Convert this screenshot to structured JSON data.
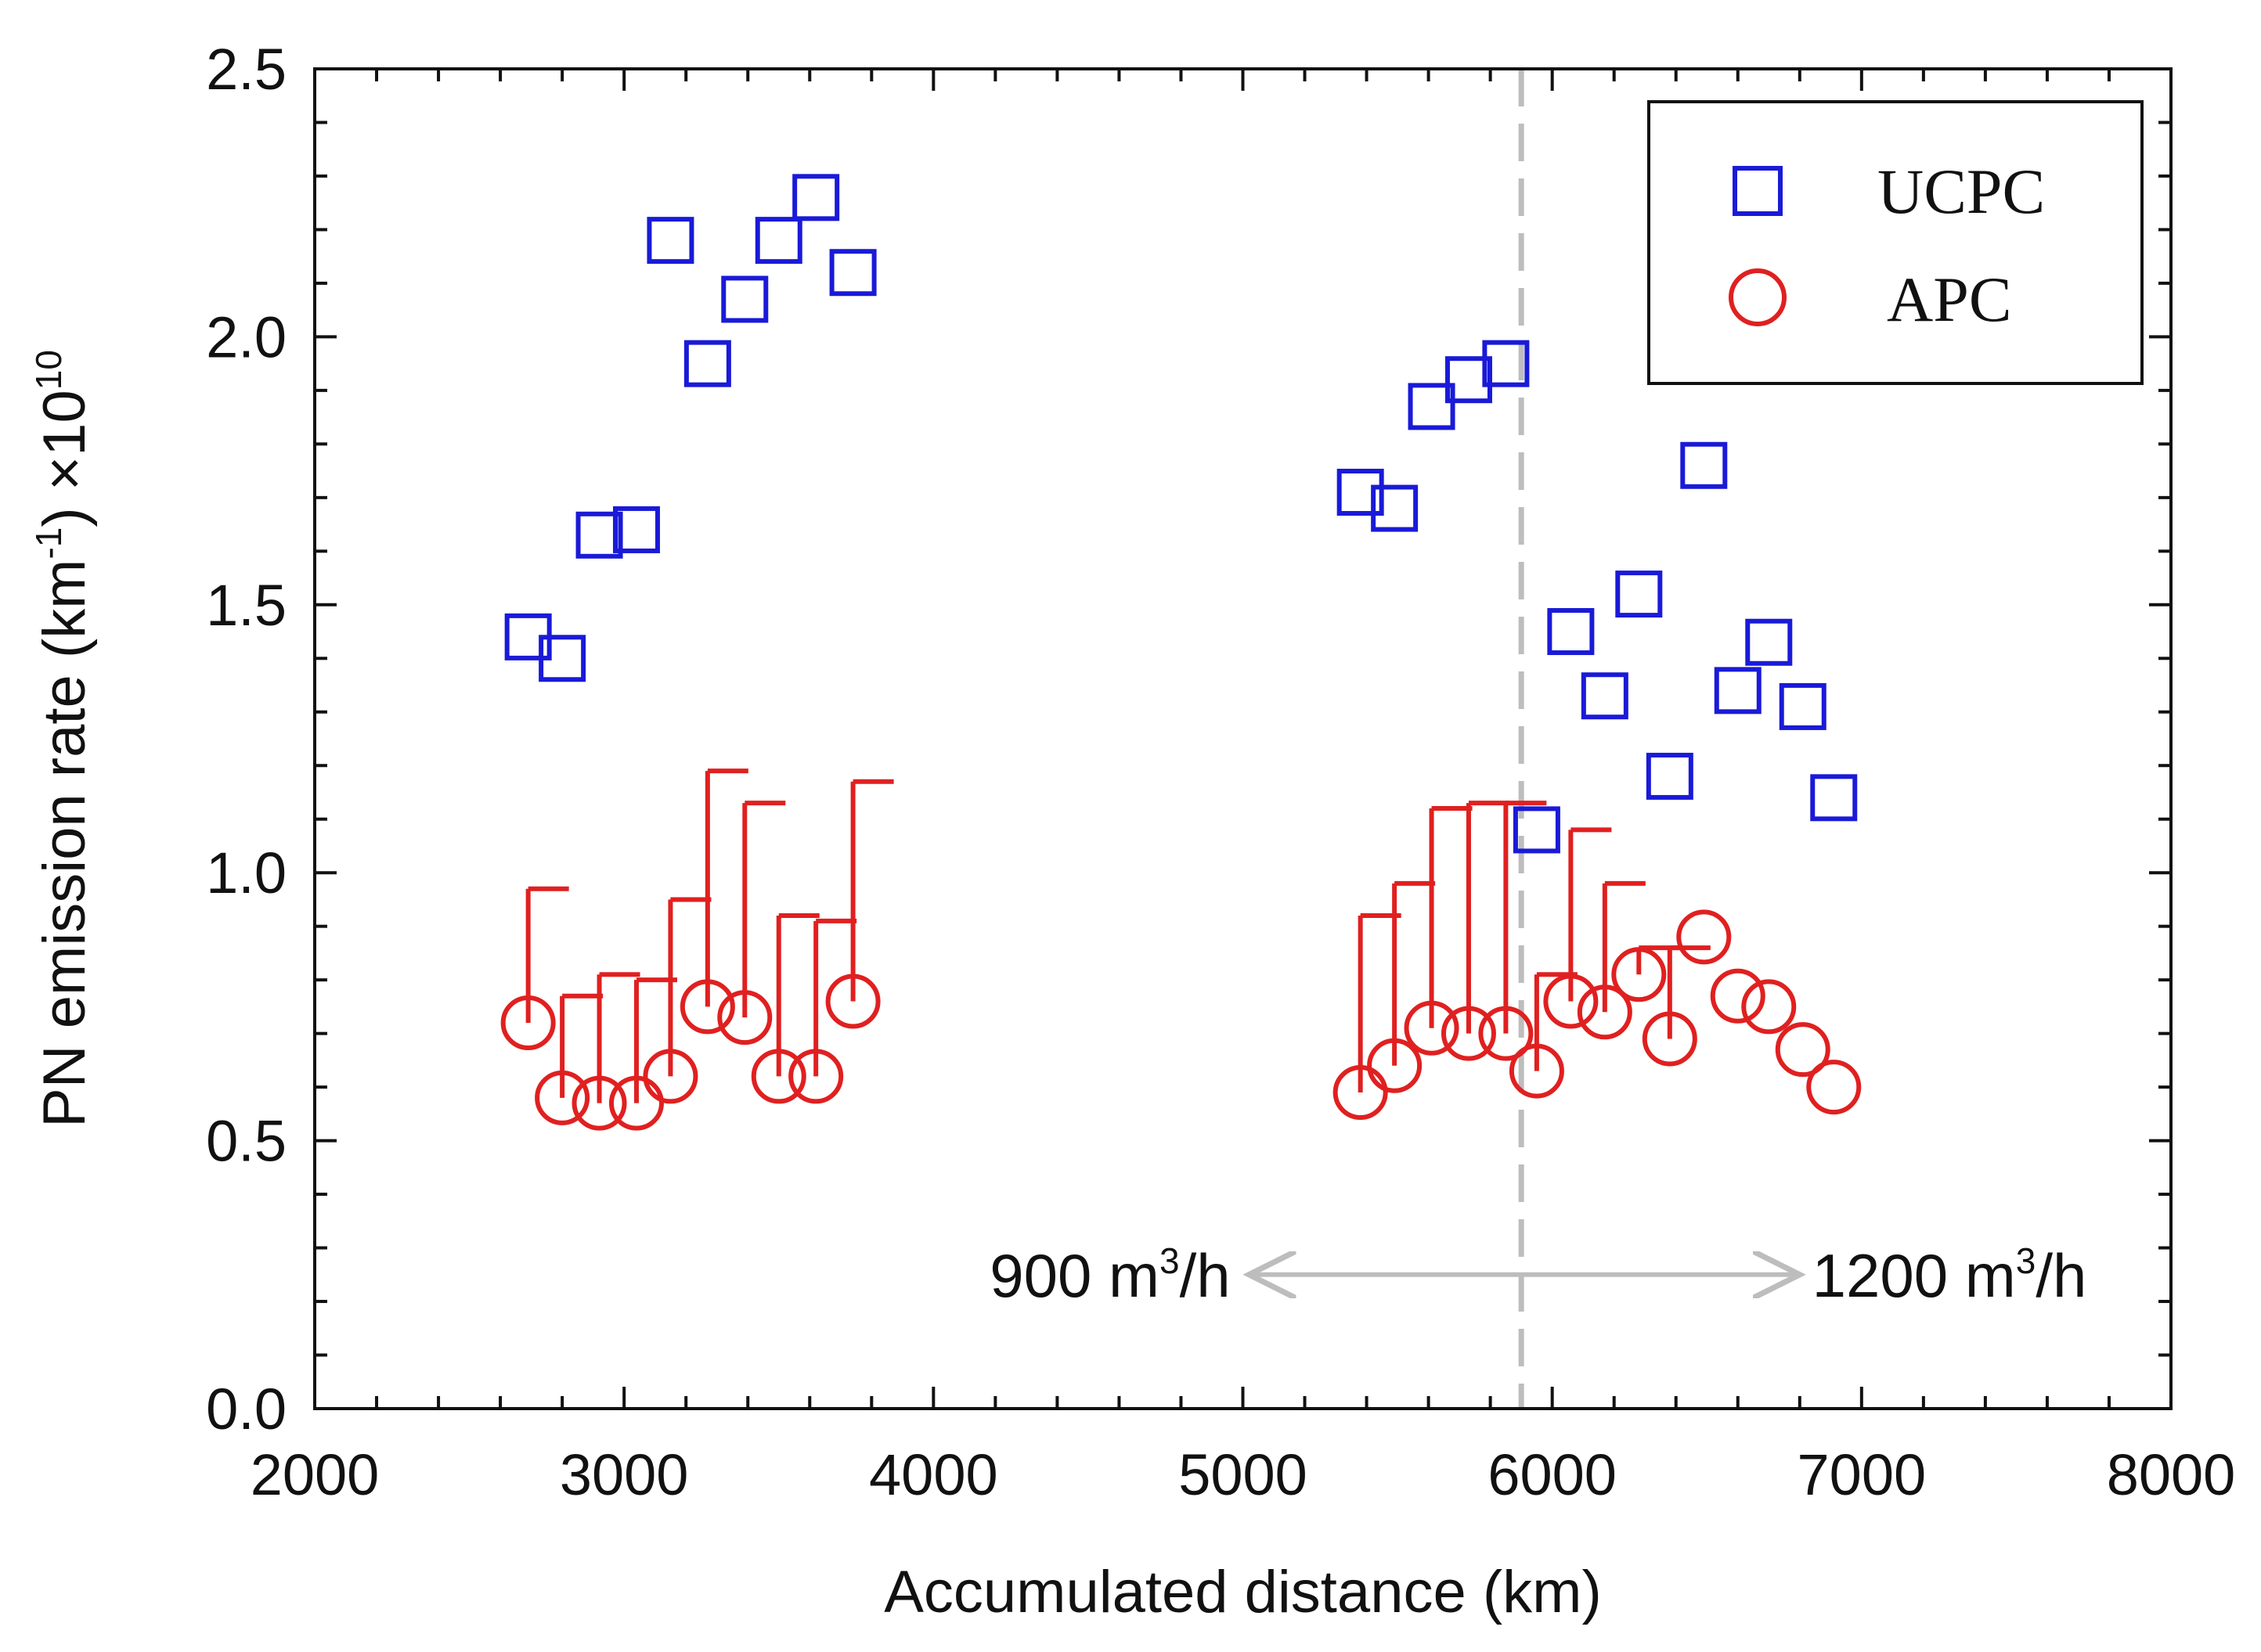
{
  "chart_data": {
    "type": "scatter",
    "title": "",
    "xlabel": "Accumulated distance (km)",
    "ylabel": {
      "prefix": "PN emission rate (km",
      "exp1": "-1",
      "mid": ") ×10",
      "exp2": "10"
    },
    "xlim": [
      2000,
      8000
    ],
    "ylim": [
      0.0,
      2.5
    ],
    "xticks": [
      "2000",
      "3000",
      "4000",
      "5000",
      "6000",
      "7000",
      "8000"
    ],
    "yticks": [
      "0.0",
      "0.5",
      "1.0",
      "1.5",
      "2.0",
      "2.5"
    ],
    "divider_x": 5900,
    "annotations": {
      "left": {
        "base": "900 m",
        "exp": "3",
        "tail": "/h"
      },
      "right": {
        "base": "1200 m",
        "exp": "3",
        "tail": "/h"
      }
    },
    "legend_position": "top-right",
    "series": [
      {
        "name": "UCPC",
        "marker": "square",
        "color": "#1a1ad8",
        "x": [
          2690,
          2800,
          2920,
          3040,
          3150,
          3270,
          3390,
          3500,
          3620,
          3740,
          5380,
          5490,
          5610,
          5730,
          5850,
          5950,
          6060,
          6170,
          6280,
          6380,
          6490,
          6600,
          6700,
          6810,
          6910
        ],
        "y": [
          1.44,
          1.4,
          1.63,
          1.64,
          2.18,
          1.95,
          2.07,
          2.18,
          2.26,
          2.12,
          1.71,
          1.68,
          1.87,
          1.92,
          1.95,
          1.08,
          1.45,
          1.33,
          1.52,
          1.18,
          1.76,
          1.34,
          1.43,
          1.31,
          1.14
        ]
      },
      {
        "name": "APC",
        "marker": "circle",
        "color": "#e02020",
        "x": [
          2690,
          2800,
          2920,
          3040,
          3150,
          3270,
          3390,
          3500,
          3620,
          3740,
          5380,
          5490,
          5610,
          5730,
          5850,
          5950,
          6060,
          6170,
          6280,
          6380,
          6490,
          6600,
          6700,
          6810,
          6910
        ],
        "y": [
          0.72,
          0.58,
          0.57,
          0.57,
          0.62,
          0.75,
          0.73,
          0.62,
          0.62,
          0.76,
          0.59,
          0.64,
          0.71,
          0.7,
          0.7,
          0.63,
          0.76,
          0.74,
          0.81,
          0.69,
          0.88,
          0.77,
          0.75,
          0.67,
          0.6
        ],
        "yerr_upper": [
          0.97,
          0.77,
          0.81,
          0.8,
          0.95,
          1.19,
          1.13,
          0.92,
          0.91,
          1.17,
          0.92,
          0.98,
          1.12,
          1.13,
          1.13,
          0.81,
          1.08,
          0.98,
          0.86,
          0.86,
          null,
          null,
          null,
          null,
          null
        ]
      }
    ]
  }
}
